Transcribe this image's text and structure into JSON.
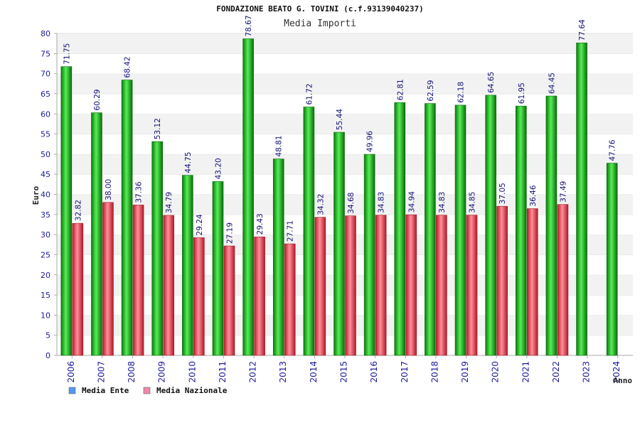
{
  "chart_data": {
    "type": "bar",
    "title": "FONDAZIONE BEATO G. TOVINI (c.f.93139040237)",
    "subtitle": "Media Importi",
    "ylabel": "Euro",
    "xlabel": "Anno",
    "ylim": [
      0,
      80
    ],
    "ytick_step": 5,
    "grid": "horizontal bands",
    "legend_position": "bottom-left",
    "categories": [
      "2006",
      "2007",
      "2008",
      "2009",
      "2010",
      "2011",
      "2012",
      "2013",
      "2014",
      "2015",
      "2016",
      "2017",
      "2018",
      "2019",
      "2020",
      "2021",
      "2022",
      "2023",
      "2024"
    ],
    "series": [
      {
        "name": "Media Ente",
        "color": "#22bb22",
        "legend_color": "#5599ee",
        "values": [
          71.75,
          60.29,
          68.42,
          53.12,
          44.75,
          43.2,
          78.67,
          48.81,
          61.72,
          55.44,
          49.96,
          62.81,
          62.59,
          62.18,
          64.65,
          61.95,
          64.45,
          77.64,
          47.76
        ],
        "labels": [
          "71.75",
          "60.29",
          "68.42",
          "53.12",
          "44.75",
          "43.20",
          "78.67",
          "48.81",
          "61.72",
          "55.44",
          "49.96",
          "62.81",
          "62.59",
          "62.18",
          "64.65",
          "61.95",
          "64.45",
          "77.64",
          "47.76"
        ]
      },
      {
        "name": "Media Nazionale",
        "color": "#dd3344",
        "legend_color": "#ee88aa",
        "values": [
          32.82,
          38.0,
          37.36,
          34.79,
          29.24,
          27.19,
          29.43,
          27.71,
          34.32,
          34.68,
          34.83,
          34.94,
          34.83,
          34.85,
          37.05,
          36.46,
          37.49,
          null,
          null
        ],
        "labels": [
          "32.82",
          "38.00",
          "37.36",
          "34.79",
          "29.24",
          "27.19",
          "29.43",
          "27.71",
          "34.32",
          "34.68",
          "34.83",
          "34.94",
          "34.83",
          "34.85",
          "37.05",
          "36.46",
          "37.49",
          null,
          null
        ]
      }
    ]
  }
}
